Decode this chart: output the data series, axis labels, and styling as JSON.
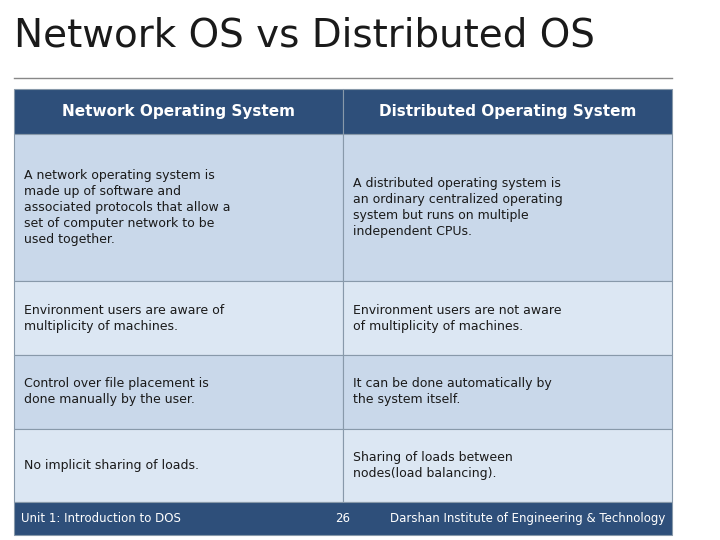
{
  "title": "Network OS vs Distributed OS",
  "title_fontsize": 28,
  "title_color": "#1a1a1a",
  "background_color": "#ffffff",
  "header_bg_color": "#2e4f7a",
  "header_text_color": "#ffffff",
  "header_fontsize": 11,
  "row_bg_even": "#c9d8ea",
  "row_bg_odd": "#dce7f3",
  "cell_text_color": "#1a1a1a",
  "cell_fontsize": 9,
  "footer_bg_color": "#2e4f7a",
  "footer_text_color": "#ffffff",
  "footer_left": "Unit 1: Introduction to DOS",
  "footer_center": "26",
  "footer_right": "Darshan Institute of Engineering & Technology",
  "footer_fontsize": 8.5,
  "col1_header": "Network Operating System",
  "col2_header": "Distributed Operating System",
  "line_color": "#888888",
  "rows": [
    {
      "col1": "A network operating system is\nmade up of software and\nassociated protocols that allow a\nset of computer network to be\nused together.",
      "col2": "A distributed operating system is\nan ordinary centralized operating\nsystem but runs on multiple\nindependent CPUs."
    },
    {
      "col1": "Environment users are aware of\nmultiplicity of machines.",
      "col2": "Environment users are not aware\nof multiplicity of machines."
    },
    {
      "col1": "Control over file placement is\ndone manually by the user.",
      "col2": "It can be done automatically by\nthe system itself."
    },
    {
      "col1": "No implicit sharing of loads.",
      "col2": "Sharing of loads between\nnodes(load balancing)."
    }
  ]
}
